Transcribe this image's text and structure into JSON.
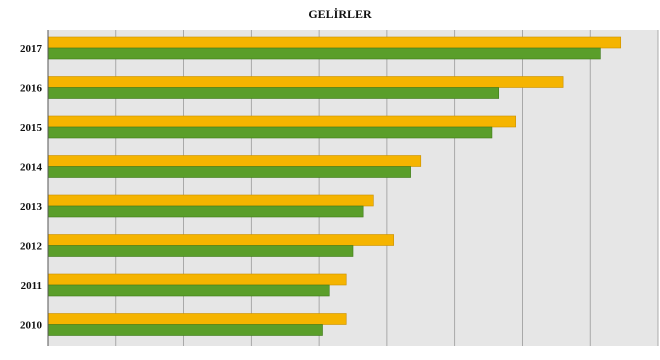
{
  "chart_data": {
    "type": "bar",
    "orientation": "horizontal",
    "title": "GELİRLER",
    "categories": [
      "2017",
      "2016",
      "2015",
      "2014",
      "2013",
      "2012",
      "2011",
      "2010"
    ],
    "series": [
      {
        "values": [
          8.45,
          7.6,
          6.9,
          5.5,
          4.8,
          5.1,
          4.4,
          4.4
        ],
        "color": "#f5b400"
      },
      {
        "values": [
          8.15,
          6.65,
          6.55,
          5.35,
          4.65,
          4.5,
          4.15,
          4.05
        ],
        "color": "#5a9e2a"
      }
    ],
    "xlim": [
      0,
      9
    ],
    "grid": true,
    "background": "#e6e6e6"
  }
}
